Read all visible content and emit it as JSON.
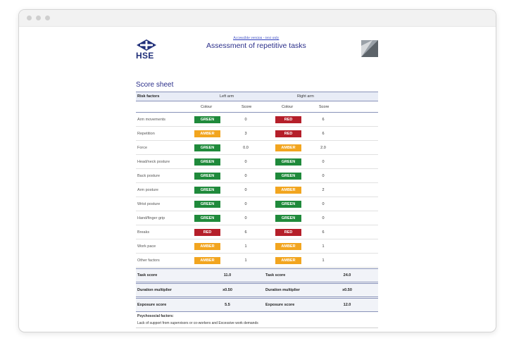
{
  "window": {
    "controls": [
      "close",
      "minimize",
      "maximize"
    ]
  },
  "header": {
    "logo_text": "HSE",
    "accessible_link": "Accessible version - text only",
    "title": "Assessment of repetitive tasks"
  },
  "sheet": {
    "title": "Score sheet",
    "headers": {
      "risk_factors": "Risk factors",
      "left_arm": "Left arm",
      "right_arm": "Right arm",
      "colour": "Colour",
      "score": "Score"
    },
    "colors": {
      "GREEN": "#1f8a3b",
      "AMBER": "#f2a51f",
      "RED": "#b51f2a"
    },
    "factors": [
      {
        "name": "Arm movements",
        "left_colour": "GREEN",
        "left_score": "0",
        "right_colour": "RED",
        "right_score": "6"
      },
      {
        "name": "Repetition",
        "left_colour": "AMBER",
        "left_score": "3",
        "right_colour": "RED",
        "right_score": "6"
      },
      {
        "name": "Force",
        "left_colour": "GREEN",
        "left_score": "0.0",
        "right_colour": "AMBER",
        "right_score": "2.0"
      },
      {
        "name": "Head/neck posture",
        "left_colour": "GREEN",
        "left_score": "0",
        "right_colour": "GREEN",
        "right_score": "0"
      },
      {
        "name": "Back posture",
        "left_colour": "GREEN",
        "left_score": "0",
        "right_colour": "GREEN",
        "right_score": "0"
      },
      {
        "name": "Arm posture",
        "left_colour": "GREEN",
        "left_score": "0",
        "right_colour": "AMBER",
        "right_score": "2"
      },
      {
        "name": "Wrist posture",
        "left_colour": "GREEN",
        "left_score": "0",
        "right_colour": "GREEN",
        "right_score": "0"
      },
      {
        "name": "Hand/finger grip",
        "left_colour": "GREEN",
        "left_score": "0",
        "right_colour": "GREEN",
        "right_score": "0"
      },
      {
        "name": "Breaks",
        "left_colour": "RED",
        "left_score": "6",
        "right_colour": "RED",
        "right_score": "6"
      },
      {
        "name": "Work pace",
        "left_colour": "AMBER",
        "left_score": "1",
        "right_colour": "AMBER",
        "right_score": "1"
      },
      {
        "name": "Other factors",
        "left_colour": "AMBER",
        "left_score": "1",
        "right_colour": "AMBER",
        "right_score": "1"
      }
    ],
    "summary": [
      {
        "left_label": "Task score",
        "left_value": "11.0",
        "right_label": "Task score",
        "right_value": "24.0"
      },
      {
        "left_label": "Duration multiplier",
        "left_value": "x0.50",
        "right_label": "Duration multiplier",
        "right_value": "x0.50"
      },
      {
        "left_label": "Exposure score",
        "left_value": "5.5",
        "right_label": "Exposure score",
        "right_value": "12.0"
      }
    ],
    "psychosocial": {
      "title": "Psychosocial factors:",
      "text": "Lack of support from supervisors or co-workers and Excessive work demands"
    }
  }
}
